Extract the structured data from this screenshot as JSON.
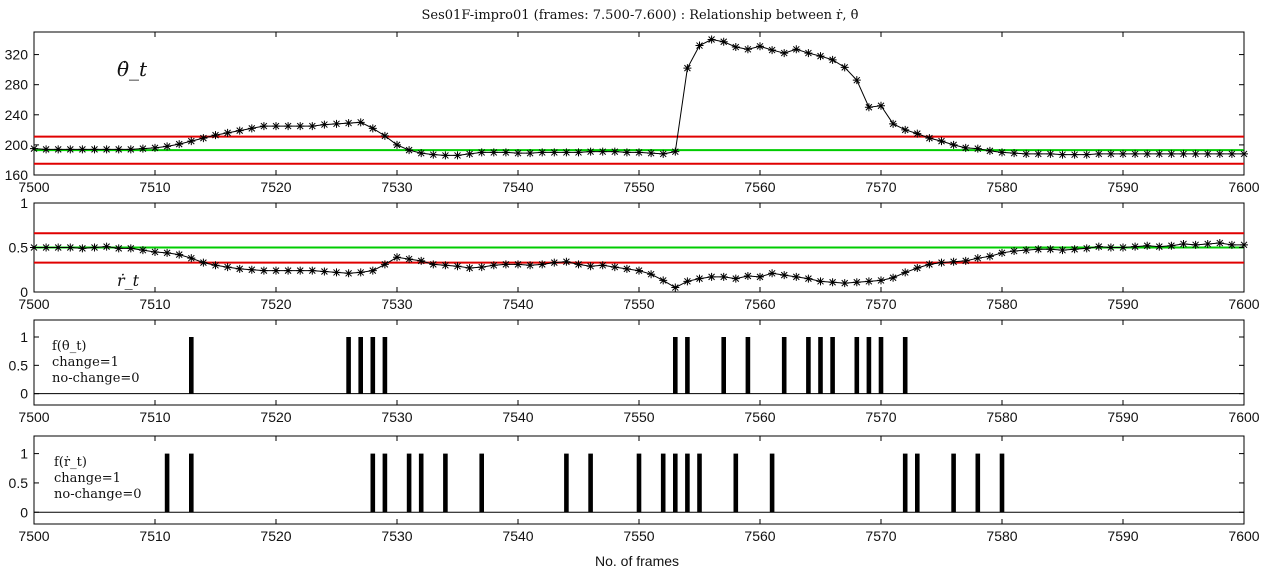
{
  "title": "Ses01F-impro01 (frames: 7.500-7.600) : Relationship between ṙ, θ̇",
  "xlabel": "No. of frames",
  "colors": {
    "threshold": "#e00000",
    "mean": "#00cc00",
    "series": "#000000",
    "bars": "#000000"
  },
  "chart_data": [
    {
      "type": "line",
      "annotation": "θ̇_t",
      "xlim": [
        7500,
        7600
      ],
      "ylim": [
        160,
        350
      ],
      "xticks": [
        7500,
        7510,
        7520,
        7530,
        7540,
        7550,
        7560,
        7570,
        7580,
        7590,
        7600
      ],
      "yticks": [
        160,
        200,
        240,
        280,
        320
      ],
      "grid": false,
      "marker": "*",
      "hlines": [
        {
          "role": "upper-threshold",
          "y": 211,
          "color": "#e00000"
        },
        {
          "role": "mean",
          "y": 193,
          "color": "#00cc00"
        },
        {
          "role": "lower-threshold",
          "y": 175,
          "color": "#e00000"
        }
      ],
      "x": [
        7500,
        7501,
        7502,
        7503,
        7504,
        7505,
        7506,
        7507,
        7508,
        7509,
        7510,
        7511,
        7512,
        7513,
        7514,
        7515,
        7516,
        7517,
        7518,
        7519,
        7520,
        7521,
        7522,
        7523,
        7524,
        7525,
        7526,
        7527,
        7528,
        7529,
        7530,
        7531,
        7532,
        7533,
        7534,
        7535,
        7536,
        7537,
        7538,
        7539,
        7540,
        7541,
        7542,
        7543,
        7544,
        7545,
        7546,
        7547,
        7548,
        7549,
        7550,
        7551,
        7552,
        7553,
        7554,
        7555,
        7556,
        7557,
        7558,
        7559,
        7560,
        7561,
        7562,
        7563,
        7564,
        7565,
        7566,
        7567,
        7568,
        7569,
        7570,
        7571,
        7572,
        7573,
        7574,
        7575,
        7576,
        7577,
        7578,
        7579,
        7580,
        7581,
        7582,
        7583,
        7584,
        7585,
        7586,
        7587,
        7588,
        7589,
        7590,
        7591,
        7592,
        7593,
        7594,
        7595,
        7596,
        7597,
        7598,
        7599,
        7600
      ],
      "y": [
        195,
        194,
        194,
        194,
        194,
        194,
        194,
        194,
        194,
        195,
        196,
        198,
        201,
        205,
        209,
        213,
        216,
        219,
        222,
        225,
        225,
        225,
        225,
        225,
        227,
        228,
        229,
        230,
        222,
        212,
        200,
        193,
        189,
        187,
        186,
        186,
        188,
        190,
        190,
        190,
        189,
        189,
        190,
        190,
        190,
        190,
        191,
        191,
        191,
        190,
        190,
        189,
        188,
        191,
        302,
        332,
        340,
        337,
        330,
        327,
        331,
        326,
        322,
        327,
        322,
        318,
        313,
        303,
        286,
        250,
        252,
        228,
        220,
        215,
        209,
        205,
        200,
        196,
        195,
        192,
        190,
        189,
        188,
        188,
        188,
        187,
        187,
        187,
        188,
        188,
        188,
        188,
        188,
        188,
        188,
        188,
        188,
        188,
        188,
        188,
        188
      ]
    },
    {
      "type": "line",
      "annotation": "ṙ_t",
      "xlim": [
        7500,
        7600
      ],
      "ylim": [
        0,
        1
      ],
      "xticks": [
        7500,
        7510,
        7520,
        7530,
        7540,
        7550,
        7560,
        7570,
        7580,
        7590,
        7600
      ],
      "yticks": [
        0,
        0.5,
        1
      ],
      "grid": false,
      "marker": "*",
      "hlines": [
        {
          "role": "upper-threshold",
          "y": 0.66,
          "color": "#e00000"
        },
        {
          "role": "mean",
          "y": 0.5,
          "color": "#00cc00"
        },
        {
          "role": "lower-threshold",
          "y": 0.33,
          "color": "#e00000"
        }
      ],
      "x": [
        7500,
        7501,
        7502,
        7503,
        7504,
        7505,
        7506,
        7507,
        7508,
        7509,
        7510,
        7511,
        7512,
        7513,
        7514,
        7515,
        7516,
        7517,
        7518,
        7519,
        7520,
        7521,
        7522,
        7523,
        7524,
        7525,
        7526,
        7527,
        7528,
        7529,
        7530,
        7531,
        7532,
        7533,
        7534,
        7535,
        7536,
        7537,
        7538,
        7539,
        7540,
        7541,
        7542,
        7543,
        7544,
        7545,
        7546,
        7547,
        7548,
        7549,
        7550,
        7551,
        7552,
        7553,
        7554,
        7555,
        7556,
        7557,
        7558,
        7559,
        7560,
        7561,
        7562,
        7563,
        7564,
        7565,
        7566,
        7567,
        7568,
        7569,
        7570,
        7571,
        7572,
        7573,
        7574,
        7575,
        7576,
        7577,
        7578,
        7579,
        7580,
        7581,
        7582,
        7583,
        7584,
        7585,
        7586,
        7587,
        7588,
        7589,
        7590,
        7591,
        7592,
        7593,
        7594,
        7595,
        7596,
        7597,
        7598,
        7599,
        7600
      ],
      "y": [
        0.5,
        0.5,
        0.5,
        0.5,
        0.49,
        0.5,
        0.51,
        0.49,
        0.49,
        0.47,
        0.45,
        0.44,
        0.42,
        0.38,
        0.33,
        0.3,
        0.28,
        0.26,
        0.25,
        0.24,
        0.24,
        0.24,
        0.24,
        0.24,
        0.23,
        0.22,
        0.21,
        0.22,
        0.24,
        0.31,
        0.39,
        0.37,
        0.35,
        0.31,
        0.3,
        0.29,
        0.27,
        0.28,
        0.3,
        0.31,
        0.31,
        0.3,
        0.31,
        0.33,
        0.34,
        0.31,
        0.29,
        0.3,
        0.28,
        0.26,
        0.24,
        0.2,
        0.13,
        0.05,
        0.12,
        0.15,
        0.17,
        0.17,
        0.15,
        0.18,
        0.17,
        0.21,
        0.19,
        0.17,
        0.15,
        0.12,
        0.11,
        0.1,
        0.11,
        0.12,
        0.13,
        0.16,
        0.22,
        0.27,
        0.31,
        0.33,
        0.34,
        0.35,
        0.38,
        0.4,
        0.44,
        0.46,
        0.47,
        0.48,
        0.48,
        0.47,
        0.48,
        0.49,
        0.51,
        0.5,
        0.5,
        0.51,
        0.52,
        0.51,
        0.52,
        0.54,
        0.53,
        0.54,
        0.55,
        0.53,
        0.53
      ]
    },
    {
      "type": "bar",
      "annotation": [
        "f(θ̇_t)",
        "change=1",
        "no-change=0"
      ],
      "xlim": [
        7500,
        7600
      ],
      "ylim": [
        -0.2,
        1.3
      ],
      "xticks": [
        7500,
        7510,
        7520,
        7530,
        7540,
        7550,
        7560,
        7570,
        7580,
        7590,
        7600
      ],
      "yticks": [
        0,
        0.5,
        1
      ],
      "x": [
        7513,
        7526,
        7527,
        7528,
        7529,
        7553,
        7554,
        7557,
        7559,
        7562,
        7564,
        7565,
        7566,
        7568,
        7569,
        7570,
        7572
      ],
      "values": [
        1,
        1,
        1,
        1,
        1,
        1,
        1,
        1,
        1,
        1,
        1,
        1,
        1,
        1,
        1,
        1,
        1
      ]
    },
    {
      "type": "bar",
      "annotation": [
        "f(ṙ_t)",
        "change=1",
        "no-change=0"
      ],
      "xlim": [
        7500,
        7600
      ],
      "ylim": [
        -0.2,
        1.3
      ],
      "xticks": [
        7500,
        7510,
        7520,
        7530,
        7540,
        7550,
        7560,
        7570,
        7580,
        7590,
        7600
      ],
      "yticks": [
        0,
        0.5,
        1
      ],
      "x": [
        7511,
        7513,
        7528,
        7529,
        7531,
        7532,
        7534,
        7537,
        7544,
        7546,
        7550,
        7552,
        7553,
        7554,
        7555,
        7558,
        7561,
        7572,
        7573,
        7576,
        7578,
        7580
      ],
      "values": [
        1,
        1,
        1,
        1,
        1,
        1,
        1,
        1,
        1,
        1,
        1,
        1,
        1,
        1,
        1,
        1,
        1,
        1,
        1,
        1,
        1,
        1
      ]
    }
  ]
}
